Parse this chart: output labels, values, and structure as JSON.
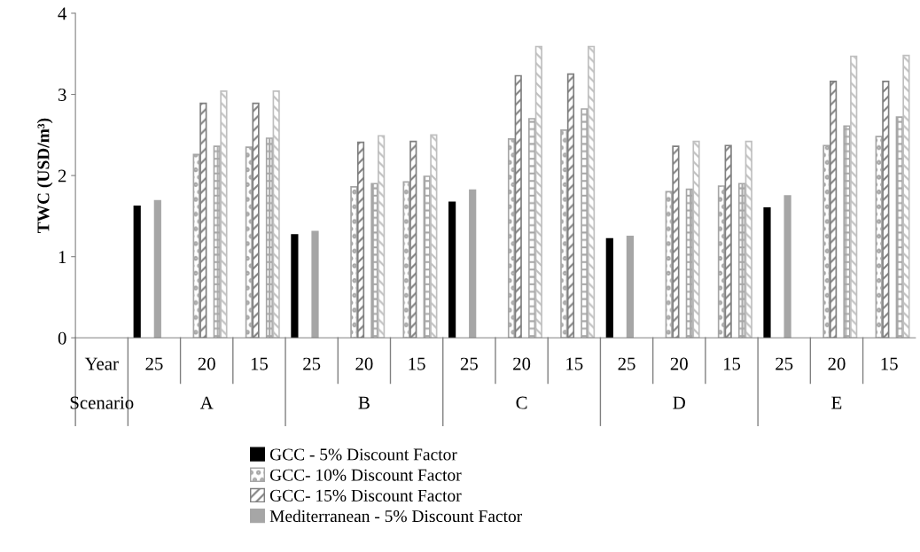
{
  "chart_data": {
    "type": "bar",
    "ylabel": "TWC (USD/m³)",
    "categories": [
      "25",
      "20",
      "15",
      "25",
      "20",
      "15",
      "25",
      "20",
      "15",
      "25",
      "20",
      "15",
      "25",
      "20",
      "15"
    ],
    "annotations": [
      "Year",
      "Scenario",
      "A",
      "B",
      "C",
      "D",
      "E"
    ],
    "series": [
      {
        "name": "GCC - 5% Discount Factor",
        "color": "#000000",
        "values": [
          1.62,
          null,
          null,
          1.27,
          null,
          null,
          1.67,
          null,
          null,
          1.22,
          null,
          null,
          1.6,
          null,
          null
        ]
      },
      {
        "name": "GCC- 10% Discount Factor",
        "color": "#a6a6a6",
        "values": [
          null,
          2.26,
          2.35,
          null,
          1.86,
          1.92,
          null,
          2.45,
          2.56,
          null,
          1.8,
          1.87,
          null,
          2.37,
          2.48
        ]
      },
      {
        "name": "GCC- 15% Discount Factor",
        "color": "#7f7f7f",
        "values": [
          null,
          2.89,
          2.89,
          null,
          2.41,
          2.42,
          null,
          3.23,
          3.25,
          null,
          2.36,
          2.37,
          null,
          3.16,
          3.16
        ]
      },
      {
        "name": "Mediterranean - 5% Discount Factor",
        "color": "#a6a6a6",
        "values": [
          1.69,
          null,
          null,
          1.31,
          null,
          null,
          1.82,
          null,
          null,
          1.25,
          null,
          null,
          1.75,
          null,
          null
        ]
      },
      {
        "color": "#a6a6a6",
        "values": [
          null,
          2.36,
          2.46,
          null,
          1.9,
          1.99,
          null,
          2.7,
          2.82,
          null,
          1.83,
          1.9,
          null,
          2.61,
          2.72
        ]
      },
      {
        "color": "#bfbfbf",
        "values": [
          null,
          3.04,
          3.04,
          null,
          2.49,
          2.5,
          null,
          3.59,
          3.59,
          null,
          2.42,
          2.42,
          null,
          3.47,
          3.48
        ]
      }
    ],
    "ylim": [
      0,
      4
    ],
    "yticks": [
      0,
      1,
      2,
      3,
      4
    ],
    "grid": false,
    "legend": "bottom"
  }
}
